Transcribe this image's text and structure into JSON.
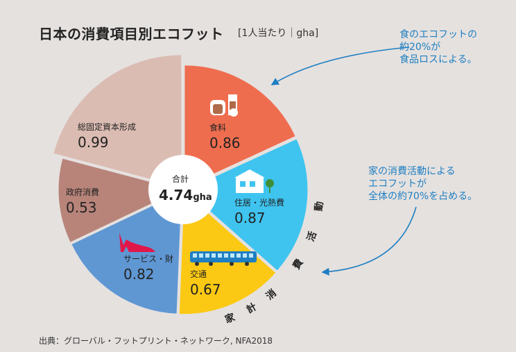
{
  "title": "日本の消費項目別エコフット",
  "subtitle": "[1人当たり｜gha]",
  "source": "出典：グローバル・フットプリント・ネットワーク, NFA2018",
  "annotations": {
    "food_loss": "食のエコフットの\n約20%が\n食品ロスによる。",
    "household": "家の消費活動による\nエコフットが\n全体の約70%を占める。",
    "arc_label": "家計消費活動"
  },
  "center": {
    "label": "合計",
    "value": "4.74",
    "unit": "gha"
  },
  "colors": {
    "accent": "#1e7fc2"
  },
  "chart_data": {
    "type": "pie",
    "title": "日本の消費項目別エコフット",
    "unit": "gha",
    "total": 4.74,
    "slices": [
      {
        "label": "食料",
        "value": 0.86,
        "color": "#ef6d4f",
        "icon": "food-icon"
      },
      {
        "label": "住居・光熱費",
        "value": 0.87,
        "color": "#3fc4f0",
        "icon": "house-icon"
      },
      {
        "label": "交通",
        "value": 0.67,
        "color": "#fbc913",
        "icon": "train-icon"
      },
      {
        "label": "サービス・財",
        "value": 0.82,
        "color": "#5f97d3",
        "icon": "shoe-icon"
      },
      {
        "label": "政府消費",
        "value": 0.53,
        "color": "#b8847a",
        "icon": ""
      },
      {
        "label": "総固定資本形成",
        "value": 0.99,
        "color": "#dbbcb2",
        "icon": ""
      }
    ]
  }
}
